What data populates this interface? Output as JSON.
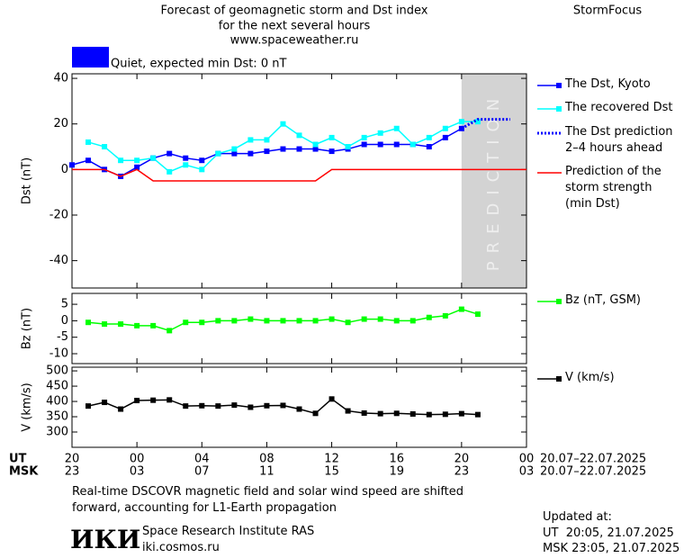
{
  "header": {
    "title_lines": [
      "Forecast of geomagnetic storm and Dst index",
      "for the next several hours",
      "www.spaceweather.ru"
    ],
    "brand": "StormFocus",
    "status": {
      "text": "Quiet, expected min Dst: 0 nT",
      "color": "#0000ff"
    }
  },
  "chart_data": [
    {
      "type": "line",
      "ylabel": "Dst (nT)",
      "xlim": [
        0,
        28
      ],
      "ylim": [
        -52,
        42
      ],
      "yticks": [
        -40,
        -20,
        0,
        20,
        40
      ],
      "shaded_region": {
        "label": "PREDICTION",
        "x": [
          24,
          28
        ],
        "color": "#d3d3d3"
      },
      "series": [
        {
          "name": "The Dst, Kyoto",
          "color": "#0000ff",
          "marker": "square",
          "style": "solid",
          "x": [
            0,
            1,
            2,
            3,
            4,
            5,
            6,
            7,
            8,
            9,
            10,
            11,
            12,
            13,
            14,
            15,
            16,
            17,
            18,
            19,
            20,
            21,
            22,
            23,
            24
          ],
          "values": [
            2,
            4,
            0,
            -3,
            1,
            5,
            7,
            5,
            4,
            7,
            7,
            7,
            8,
            9,
            9,
            9,
            8,
            9,
            11,
            11,
            11,
            11,
            10,
            14,
            18
          ]
        },
        {
          "name": "The recovered Dst",
          "color": "#00ffff",
          "marker": "square",
          "style": "solid",
          "x": [
            1,
            2,
            3,
            4,
            5,
            6,
            7,
            8,
            9,
            10,
            11,
            12,
            13,
            14,
            15,
            16,
            17,
            18,
            19,
            20,
            21,
            22,
            23,
            24,
            25
          ],
          "values": [
            12,
            10,
            4,
            4,
            5,
            -1,
            2,
            0,
            7,
            9,
            13,
            13,
            20,
            15,
            11,
            14,
            10,
            14,
            16,
            18,
            11,
            14,
            18,
            21,
            21
          ]
        },
        {
          "name": "The Dst prediction\n2–4 hours ahead",
          "color": "#0000ff",
          "marker": "none",
          "style": "dotted",
          "x": [
            24,
            25,
            26,
            27
          ],
          "values": [
            18,
            22,
            22,
            22
          ]
        },
        {
          "name": "Prediction of the\nstorm strength\n(min Dst)",
          "color": "#ff0000",
          "marker": "none",
          "style": "solid",
          "x": [
            0,
            2,
            3,
            4,
            5,
            15,
            16,
            28
          ],
          "values": [
            0,
            0,
            -3,
            0,
            -5,
            -5,
            0,
            0
          ]
        }
      ]
    },
    {
      "type": "line",
      "ylabel": "Bz (nT)",
      "xlim": [
        0,
        28
      ],
      "ylim": [
        -13,
        8.3
      ],
      "yticks": [
        -10,
        -5,
        0,
        5
      ],
      "series": [
        {
          "name": "Bz (nT, GSM)",
          "color": "#00ff00",
          "marker": "square",
          "style": "solid",
          "x": [
            1,
            2,
            3,
            4,
            5,
            6,
            7,
            8,
            9,
            10,
            11,
            12,
            13,
            14,
            15,
            16,
            17,
            18,
            19,
            20,
            21,
            22,
            23,
            24,
            25
          ],
          "values": [
            -0.5,
            -1,
            -1,
            -1.5,
            -1.5,
            -3,
            -0.5,
            -0.5,
            0,
            0,
            0.5,
            0,
            0,
            0,
            0,
            0.5,
            -0.5,
            0.5,
            0.5,
            0,
            0,
            1,
            1.5,
            3.5,
            2
          ]
        }
      ]
    },
    {
      "type": "line",
      "ylabel": "V (km/s)",
      "xlim": [
        0,
        28
      ],
      "ylim": [
        250,
        512
      ],
      "yticks": [
        300,
        350,
        400,
        450,
        500
      ],
      "xticks": [
        {
          "value": 0,
          "label": "20"
        },
        {
          "value": 4,
          "label": "00"
        },
        {
          "value": 8,
          "label": "04"
        },
        {
          "value": 12,
          "label": "08"
        },
        {
          "value": 16,
          "label": "12"
        },
        {
          "value": 20,
          "label": "16"
        },
        {
          "value": 24,
          "label": "20"
        },
        {
          "value": 28,
          "label": "00"
        }
      ],
      "xticks_msk": [
        "23",
        "03",
        "07",
        "11",
        "15",
        "19",
        "23",
        "03"
      ],
      "xaxis_ut": "UT",
      "xaxis_msk": "MSK",
      "date_range_ut": "20.07–22.07.2025",
      "date_range_msk": "20.07–22.07.2025",
      "series": [
        {
          "name": "V (km/s)",
          "color": "#000000",
          "marker": "square",
          "style": "solid",
          "x": [
            1,
            2,
            3,
            4,
            5,
            6,
            7,
            8,
            9,
            10,
            11,
            12,
            13,
            14,
            15,
            16,
            17,
            18,
            19,
            20,
            21,
            22,
            23,
            24,
            25
          ],
          "values": [
            385,
            397,
            375,
            403,
            404,
            405,
            385,
            386,
            385,
            388,
            381,
            386,
            387,
            375,
            361,
            408,
            369,
            362,
            360,
            361,
            359,
            357,
            358,
            360,
            357
          ]
        }
      ]
    }
  ],
  "footer": {
    "note": "Real-time DSCOVR magnetic field and solar wind speed are shifted\nforward, accounting for L1-Earth propagation",
    "logo": "ИКИ",
    "institute": "Space Research Institute RAS",
    "website": "iki.cosmos.ru",
    "updated_label": "Updated at:",
    "updated_ut": "UT  20:05, 21.07.2025",
    "updated_msk": "MSK 23:05, 21.07.2025"
  }
}
